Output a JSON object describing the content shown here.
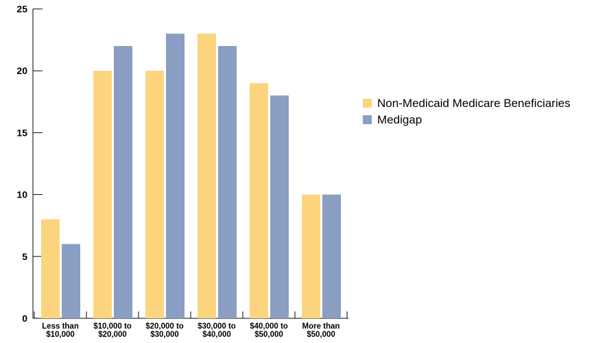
{
  "chart_data": {
    "type": "bar",
    "categories": [
      [
        "Less than",
        "$10,000"
      ],
      [
        "$10,000 to",
        "$20,000"
      ],
      [
        "$20,000 to",
        "$30,000"
      ],
      [
        "$30,000 to",
        "$40,000"
      ],
      [
        "$40,000 to",
        "$50,000"
      ],
      [
        "More than",
        "$50,000"
      ]
    ],
    "series": [
      {
        "name": "Non-Medicaid Medicare Beneficiaries",
        "values": [
          8,
          20,
          20,
          23,
          19,
          10
        ],
        "color": "#FDD47E"
      },
      {
        "name": "Medigap",
        "values": [
          6,
          22,
          23,
          22,
          18,
          10
        ],
        "color": "#8A9DC2"
      }
    ],
    "yticks": [
      0,
      5,
      10,
      15,
      20,
      25
    ],
    "ylim": [
      0,
      25
    ],
    "title": "",
    "xlabel": "",
    "ylabel": "",
    "grid": false,
    "legend": "right"
  }
}
